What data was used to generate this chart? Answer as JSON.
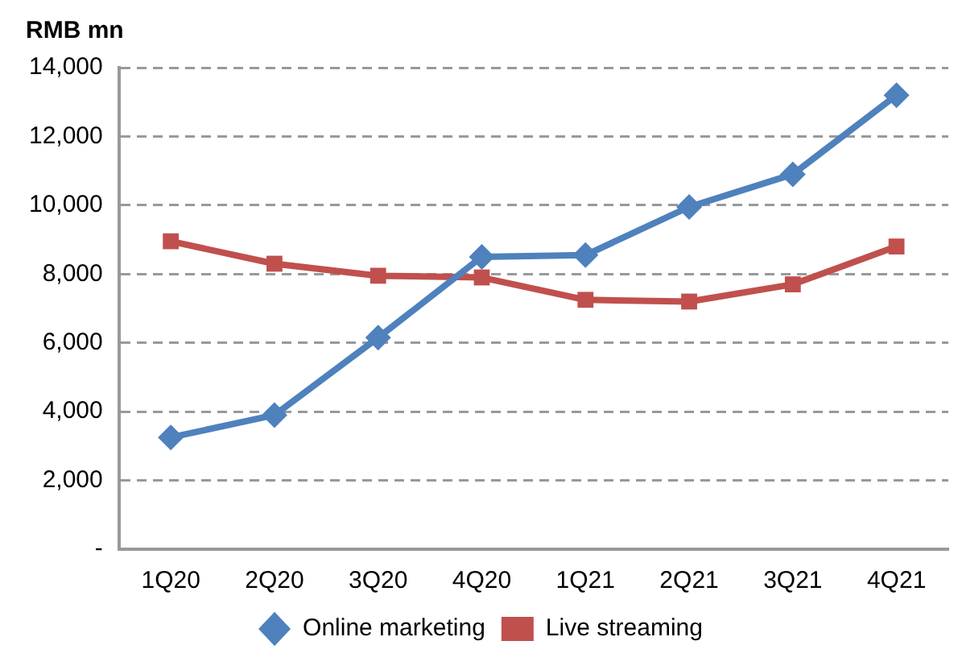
{
  "chart_data": {
    "type": "line",
    "ylabel": "RMB mn",
    "categories": [
      "1Q20",
      "2Q20",
      "3Q20",
      "4Q20",
      "1Q21",
      "2Q21",
      "3Q21",
      "4Q21"
    ],
    "series": [
      {
        "name": "Online marketing",
        "color": "#4f81bd",
        "marker": "diamond",
        "values": [
          3250,
          3900,
          6150,
          8500,
          8550,
          9950,
          10900,
          13200
        ]
      },
      {
        "name": "Live streaming",
        "color": "#c0504d",
        "marker": "square",
        "values": [
          8950,
          8300,
          7950,
          7900,
          7250,
          7200,
          7700,
          8800
        ]
      }
    ],
    "ylim": [
      0,
      14000
    ],
    "yticks": [
      {
        "value": 0,
        "label": "-"
      },
      {
        "value": 2000,
        "label": "2,000"
      },
      {
        "value": 4000,
        "label": "4,000"
      },
      {
        "value": 6000,
        "label": "6,000"
      },
      {
        "value": 8000,
        "label": "8,000"
      },
      {
        "value": 10000,
        "label": "10,000"
      },
      {
        "value": 12000,
        "label": "12,000"
      },
      {
        "value": 14000,
        "label": "14,000"
      }
    ],
    "grid": "y",
    "legend": "bottom",
    "line_style": "solid"
  }
}
